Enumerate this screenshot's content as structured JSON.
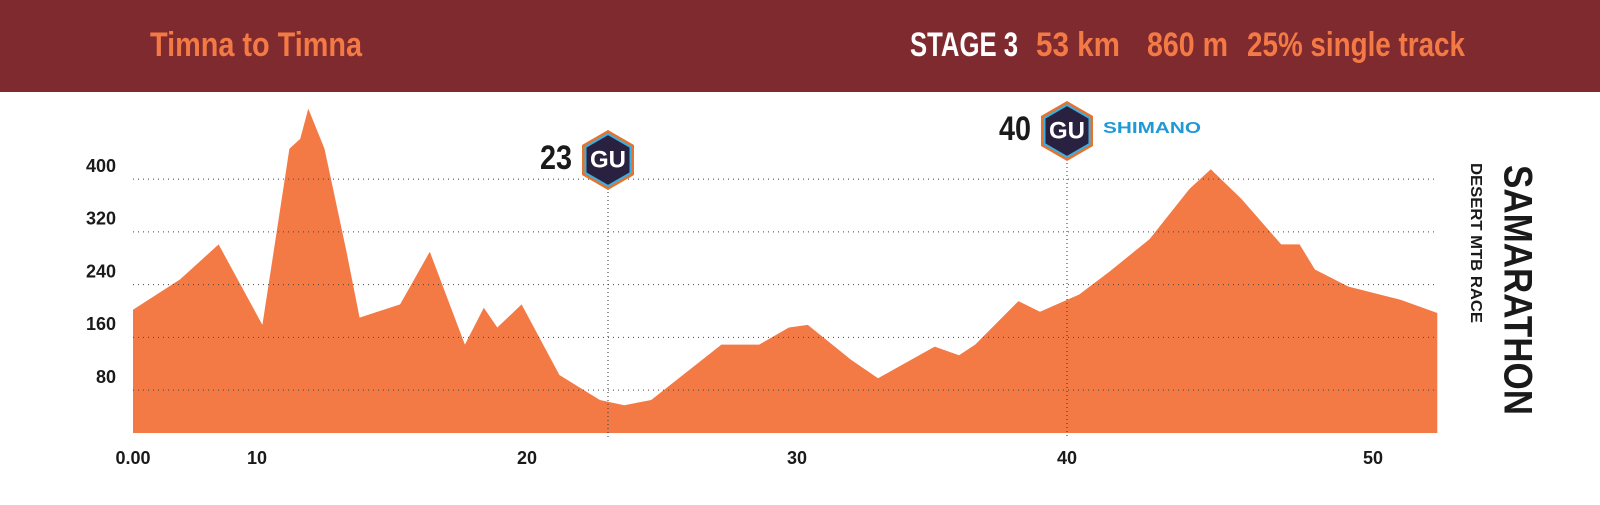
{
  "chart_data": {
    "type": "area",
    "title": "Timna to Timna",
    "header": {
      "stage": "STAGE 3",
      "distance": "53 km",
      "climb": "860 m",
      "single_track": "25% single track"
    },
    "brand": {
      "name": "SAMARATHON",
      "tagline": "DESERT MTB RACE"
    },
    "color": "#f47a45",
    "x": [
      0,
      3.8,
      6.9,
      10.2,
      11.2,
      11.6,
      11.9,
      12.5,
      13.3,
      13.8,
      15.3,
      16.4,
      17.7,
      18.4,
      18.9,
      19.8,
      21.2,
      22.7,
      23.6,
      24.6,
      27.2,
      28.6,
      29.7,
      30.4,
      32.0,
      33.0,
      35.1,
      36.0,
      36.6,
      38.2,
      39.0,
      40.4,
      41.4,
      42.7,
      44.0,
      44.7,
      45.7,
      47.0,
      47.6,
      48.1,
      49.2,
      50.9,
      52.1
    ],
    "values": [
      202,
      248,
      301,
      179,
      446,
      461,
      507,
      446,
      293,
      190,
      210,
      290,
      149,
      205,
      175,
      210,
      103,
      65,
      57,
      65,
      149,
      149,
      175,
      179,
      126,
      98,
      146,
      133,
      149,
      215,
      199,
      225,
      260,
      309,
      385,
      415,
      370,
      301,
      301,
      263,
      237,
      217,
      197
    ],
    "xlim": [
      0,
      52.1
    ],
    "xticks": [
      {
        "value": 0,
        "label": "0.00"
      },
      10,
      20,
      30,
      40,
      50
    ],
    "ylim": [
      15,
      520
    ],
    "yticks": [
      80,
      160,
      240,
      320,
      400
    ],
    "grid": true,
    "annotations": [
      {
        "x": 23,
        "logo": "GU"
      },
      {
        "x": 40,
        "logo": "GU",
        "sponsor": "SHIMANO"
      }
    ]
  }
}
